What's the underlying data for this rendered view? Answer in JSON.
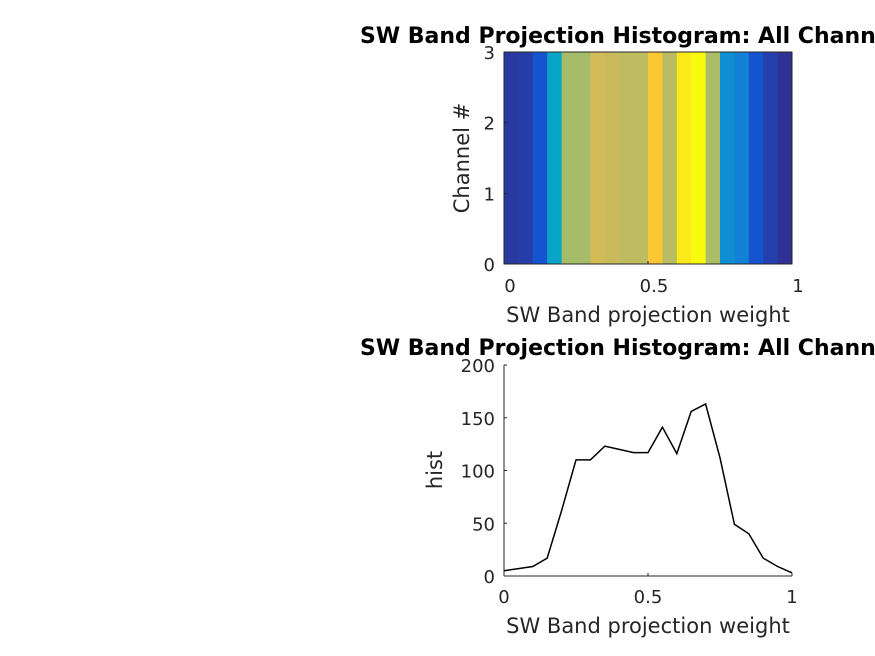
{
  "chart_data": [
    {
      "type": "heatmap",
      "title": "SW Band Projection Histogram: All Channels",
      "xlabel": "SW Band projection weight",
      "ylabel": "Channel #",
      "xlim": [
        0,
        1
      ],
      "ylim": [
        0,
        3
      ],
      "xticks": [
        "0",
        "0.5",
        "1"
      ],
      "yticks": [
        "0",
        "1",
        "2",
        "3"
      ],
      "bin_edges": [
        0,
        0.05,
        0.1,
        0.15,
        0.2,
        0.25,
        0.3,
        0.35,
        0.4,
        0.45,
        0.5,
        0.55,
        0.6,
        0.65,
        0.7,
        0.75,
        0.8,
        0.85,
        0.9,
        0.95,
        1.0
      ],
      "values": [
        6,
        8,
        17,
        62,
        110,
        110,
        123,
        120,
        117,
        117,
        141,
        116,
        156,
        163,
        112,
        49,
        40,
        17,
        9,
        3
      ],
      "colormap": [
        "#352a87",
        "#0f5cdd",
        "#1481d6",
        "#06a4ca",
        "#2eb7a4",
        "#87bf77",
        "#d1bb59",
        "#fec832",
        "#f9fb0e"
      ],
      "color_range": [
        0,
        163
      ]
    },
    {
      "type": "line",
      "title": "SW Band Projection Histogram: All Channels",
      "xlabel": "SW Band projection weight",
      "ylabel": "hist",
      "xlim": [
        0,
        1
      ],
      "ylim": [
        0,
        200
      ],
      "xticks": [
        "0",
        "0.5",
        "1"
      ],
      "yticks": [
        "0",
        "50",
        "100",
        "150",
        "200"
      ],
      "x": [
        0,
        0.05,
        0.1,
        0.15,
        0.2,
        0.25,
        0.3,
        0.35,
        0.4,
        0.45,
        0.5,
        0.55,
        0.6,
        0.65,
        0.7,
        0.75,
        0.8,
        0.85,
        0.9,
        0.95,
        1.0
      ],
      "y": [
        5,
        7,
        9,
        17,
        62,
        110,
        110,
        123,
        120,
        117,
        117,
        141,
        116,
        156,
        163,
        112,
        49,
        40,
        17,
        9,
        3
      ],
      "color": "#000000"
    }
  ]
}
